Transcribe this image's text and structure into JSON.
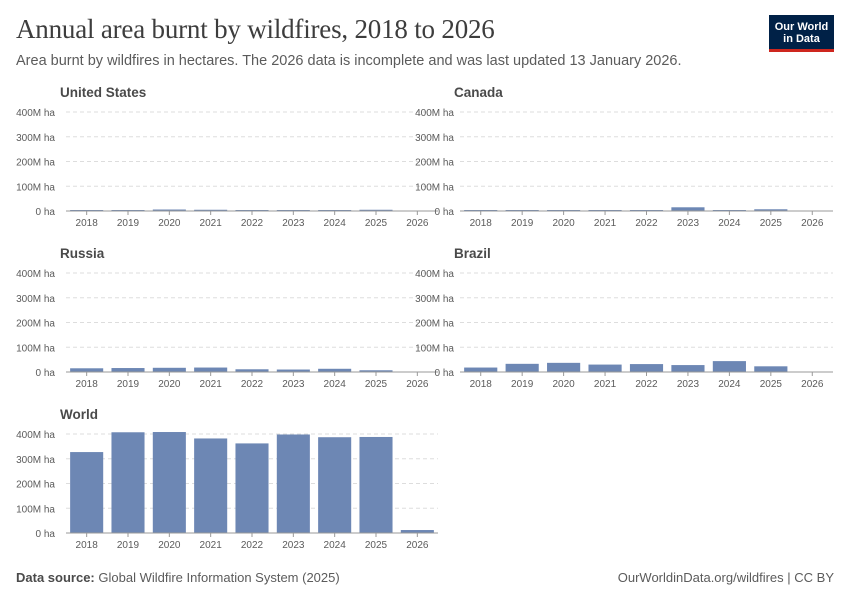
{
  "header": {
    "title": "Annual area burnt by wildfires, 2018 to 2026",
    "subtitle": "Area burnt by wildfires in hectares. The 2026 data is incomplete and was last updated 13 January 2026."
  },
  "logo": {
    "line1": "Our World",
    "line2": "in Data"
  },
  "footer": {
    "source_label": "Data source:",
    "source_text": "Global Wildfire Information System (2025)",
    "url_text": "OurWorldinData.org/wildfires | CC BY"
  },
  "colors": {
    "bar": "#6d87b4",
    "grid": "#dddddd",
    "axis": "#999999",
    "text": "#5b5b5b",
    "panel_title": "#4a4a4a"
  },
  "chart_data": [
    {
      "type": "bar",
      "title": "United States",
      "categories": [
        "2018",
        "2019",
        "2020",
        "2021",
        "2022",
        "2023",
        "2024",
        "2025",
        "2026"
      ],
      "values": [
        4,
        3,
        6,
        5,
        4,
        2,
        3,
        5,
        0
      ],
      "ylim": [
        0,
        400
      ],
      "yticks": [
        0,
        100,
        200,
        300,
        400
      ],
      "ytick_labels": [
        "0 ha",
        "100M ha",
        "200M ha",
        "300M ha",
        "400M ha"
      ]
    },
    {
      "type": "bar",
      "title": "Canada",
      "categories": [
        "2018",
        "2019",
        "2020",
        "2021",
        "2022",
        "2023",
        "2024",
        "2025",
        "2026"
      ],
      "values": [
        2,
        2,
        0.5,
        3,
        1,
        15,
        4,
        7,
        0
      ],
      "ylim": [
        0,
        400
      ],
      "yticks": [
        0,
        100,
        200,
        300,
        400
      ],
      "ytick_labels": [
        "0 ha",
        "100M ha",
        "200M ha",
        "300M ha",
        "400M ha"
      ]
    },
    {
      "type": "bar",
      "title": "Russia",
      "categories": [
        "2018",
        "2019",
        "2020",
        "2021",
        "2022",
        "2023",
        "2024",
        "2025",
        "2026"
      ],
      "values": [
        15,
        16,
        17,
        18,
        11,
        10,
        13,
        7,
        0
      ],
      "ylim": [
        0,
        400
      ],
      "yticks": [
        0,
        100,
        200,
        300,
        400
      ],
      "ytick_labels": [
        "0 ha",
        "100M ha",
        "200M ha",
        "300M ha",
        "400M ha"
      ]
    },
    {
      "type": "bar",
      "title": "Brazil",
      "categories": [
        "2018",
        "2019",
        "2020",
        "2021",
        "2022",
        "2023",
        "2024",
        "2025",
        "2026"
      ],
      "values": [
        18,
        33,
        37,
        30,
        32,
        28,
        44,
        23,
        0
      ],
      "ylim": [
        0,
        400
      ],
      "yticks": [
        0,
        100,
        200,
        300,
        400
      ],
      "ytick_labels": [
        "0 ha",
        "100M ha",
        "200M ha",
        "300M ha",
        "400M ha"
      ]
    },
    {
      "type": "bar",
      "title": "World",
      "categories": [
        "2018",
        "2019",
        "2020",
        "2021",
        "2022",
        "2023",
        "2024",
        "2025",
        "2026"
      ],
      "values": [
        327,
        407,
        408,
        382,
        362,
        398,
        387,
        388,
        12
      ],
      "ylim": [
        0,
        400
      ],
      "yticks": [
        0,
        100,
        200,
        300,
        400
      ],
      "ytick_labels": [
        "0 ha",
        "100M ha",
        "200M ha",
        "300M ha",
        "400M ha"
      ]
    }
  ]
}
